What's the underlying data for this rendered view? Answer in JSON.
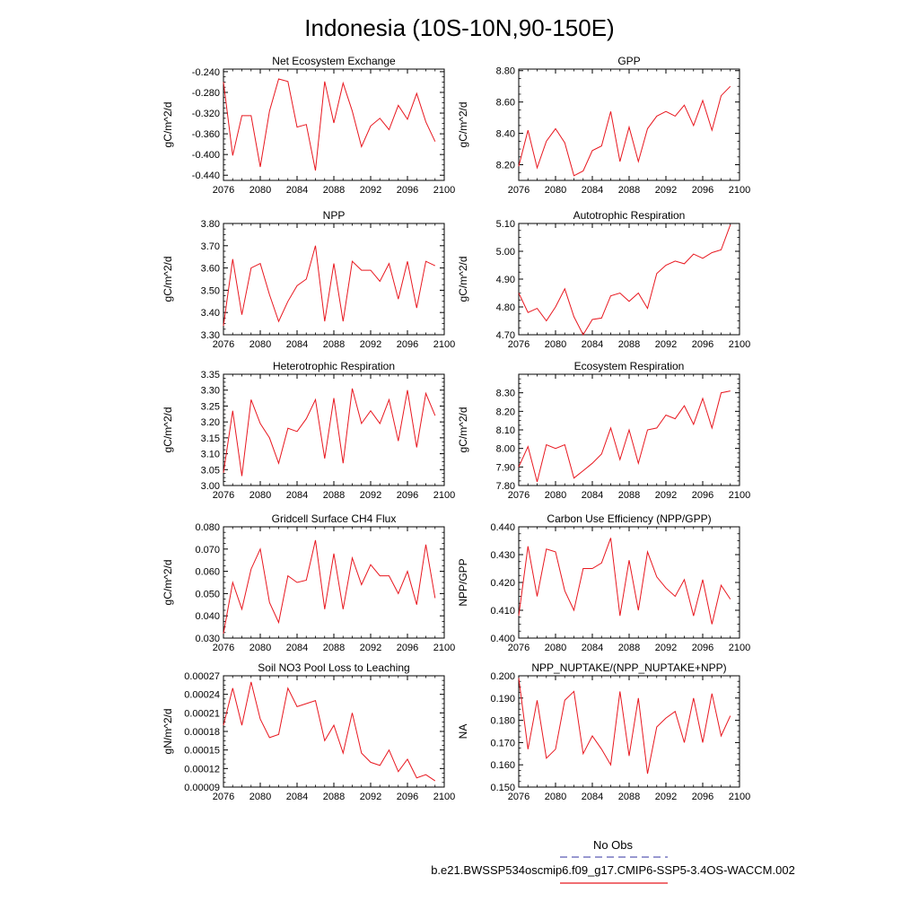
{
  "figure": {
    "title": "Indonesia (10S-10N,90-150E)",
    "legend": {
      "obs_label": "No Obs",
      "obs_color": "#5a5ab4",
      "model_label": "b.e21.BWSSP534oscmip6.f09_g17.CMIP6-SSP5-3.4OS-WACCM.002",
      "model_color": "#e8171f"
    }
  },
  "chart_data": [
    {
      "type": "line",
      "title": "Net Ecosystem Exchange",
      "ylabel": "gC/m^2/d",
      "xlim": [
        2076,
        2100
      ],
      "ylim": [
        -0.45,
        -0.235
      ],
      "xticks": [
        "2076",
        "2080",
        "2084",
        "2088",
        "2092",
        "2096",
        "2100"
      ],
      "yticks": [
        "-0.440",
        "-0.400",
        "-0.360",
        "-0.320",
        "-0.280",
        "-0.240"
      ],
      "color": "#e8171f",
      "x": [
        2076,
        2077,
        2078,
        2079,
        2080,
        2081,
        2082,
        2083,
        2084,
        2085,
        2086,
        2087,
        2088,
        2089,
        2090,
        2091,
        2092,
        2093,
        2094,
        2095,
        2096,
        2097,
        2098,
        2099
      ],
      "values": [
        -0.26,
        -0.402,
        -0.325,
        -0.325,
        -0.424,
        -0.316,
        -0.254,
        -0.259,
        -0.347,
        -0.342,
        -0.431,
        -0.259,
        -0.339,
        -0.262,
        -0.316,
        -0.385,
        -0.345,
        -0.33,
        -0.352,
        -0.305,
        -0.332,
        -0.282,
        -0.337,
        -0.375
      ]
    },
    {
      "type": "line",
      "title": "GPP",
      "ylabel": "gC/m^2/d",
      "xlim": [
        2076,
        2100
      ],
      "ylim": [
        8.1,
        8.81
      ],
      "xticks": [
        "2076",
        "2080",
        "2084",
        "2088",
        "2092",
        "2096",
        "2100"
      ],
      "yticks": [
        "8.20",
        "8.40",
        "8.60",
        "8.80"
      ],
      "color": "#e8171f",
      "x": [
        2076,
        2077,
        2078,
        2079,
        2080,
        2081,
        2082,
        2083,
        2084,
        2085,
        2086,
        2087,
        2088,
        2089,
        2090,
        2091,
        2092,
        2093,
        2094,
        2095,
        2096,
        2097,
        2098,
        2099
      ],
      "values": [
        8.19,
        8.42,
        8.18,
        8.35,
        8.43,
        8.34,
        8.13,
        8.16,
        8.29,
        8.32,
        8.54,
        8.22,
        8.44,
        8.22,
        8.43,
        8.51,
        8.54,
        8.51,
        8.58,
        8.45,
        8.61,
        8.42,
        8.64,
        8.7
      ]
    },
    {
      "type": "line",
      "title": "NPP",
      "ylabel": "gC/m^2/d",
      "xlim": [
        2076,
        2100
      ],
      "ylim": [
        3.3,
        3.8
      ],
      "xticks": [
        "2076",
        "2080",
        "2084",
        "2088",
        "2092",
        "2096",
        "2100"
      ],
      "yticks": [
        "3.30",
        "3.40",
        "3.50",
        "3.60",
        "3.70",
        "3.80"
      ],
      "color": "#e8171f",
      "x": [
        2076,
        2077,
        2078,
        2079,
        2080,
        2081,
        2082,
        2083,
        2084,
        2085,
        2086,
        2087,
        2088,
        2089,
        2090,
        2091,
        2092,
        2093,
        2094,
        2095,
        2096,
        2097,
        2098,
        2099
      ],
      "values": [
        3.34,
        3.64,
        3.39,
        3.6,
        3.62,
        3.48,
        3.36,
        3.45,
        3.52,
        3.55,
        3.7,
        3.36,
        3.62,
        3.36,
        3.63,
        3.59,
        3.59,
        3.54,
        3.62,
        3.46,
        3.63,
        3.42,
        3.63,
        3.61
      ]
    },
    {
      "type": "line",
      "title": "Autotrophic Respiration",
      "ylabel": "gC/m^2/d",
      "xlim": [
        2076,
        2100
      ],
      "ylim": [
        4.7,
        5.1
      ],
      "xticks": [
        "2076",
        "2080",
        "2084",
        "2088",
        "2092",
        "2096",
        "2100"
      ],
      "yticks": [
        "4.70",
        "4.80",
        "4.90",
        "5.00",
        "5.10"
      ],
      "color": "#e8171f",
      "x": [
        2076,
        2077,
        2078,
        2079,
        2080,
        2081,
        2082,
        2083,
        2084,
        2085,
        2086,
        2087,
        2088,
        2089,
        2090,
        2091,
        2092,
        2093,
        2094,
        2095,
        2096,
        2097,
        2098,
        2099
      ],
      "values": [
        4.85,
        4.78,
        4.795,
        4.75,
        4.8,
        4.865,
        4.765,
        4.7,
        4.755,
        4.76,
        4.84,
        4.85,
        4.82,
        4.85,
        4.795,
        4.92,
        4.95,
        4.965,
        4.955,
        4.99,
        4.975,
        4.995,
        5.005,
        5.095
      ]
    },
    {
      "type": "line",
      "title": "Heterotrophic Respiration",
      "ylabel": "gC/m^2/d",
      "xlim": [
        2076,
        2100
      ],
      "ylim": [
        3.0,
        3.35
      ],
      "xticks": [
        "2076",
        "2080",
        "2084",
        "2088",
        "2092",
        "2096",
        "2100"
      ],
      "yticks": [
        "3.00",
        "3.05",
        "3.10",
        "3.15",
        "3.20",
        "3.25",
        "3.30",
        "3.35"
      ],
      "color": "#e8171f",
      "x": [
        2076,
        2077,
        2078,
        2079,
        2080,
        2081,
        2082,
        2083,
        2084,
        2085,
        2086,
        2087,
        2088,
        2089,
        2090,
        2091,
        2092,
        2093,
        2094,
        2095,
        2096,
        2097,
        2098,
        2099
      ],
      "values": [
        3.04,
        3.235,
        3.03,
        3.27,
        3.195,
        3.15,
        3.07,
        3.18,
        3.17,
        3.21,
        3.27,
        3.085,
        3.275,
        3.07,
        3.305,
        3.195,
        3.235,
        3.195,
        3.27,
        3.14,
        3.3,
        3.12,
        3.29,
        3.22
      ]
    },
    {
      "type": "line",
      "title": "Ecosystem Respiration",
      "ylabel": "gC/m^2/d",
      "xlim": [
        2076,
        2100
      ],
      "ylim": [
        7.8,
        8.4
      ],
      "xticks": [
        "2076",
        "2080",
        "2084",
        "2088",
        "2092",
        "2096",
        "2100"
      ],
      "yticks": [
        "7.80",
        "7.90",
        "8.00",
        "8.10",
        "8.20",
        "8.30"
      ],
      "color": "#e8171f",
      "x": [
        2076,
        2077,
        2078,
        2079,
        2080,
        2081,
        2082,
        2083,
        2084,
        2085,
        2086,
        2087,
        2088,
        2089,
        2090,
        2091,
        2092,
        2093,
        2094,
        2095,
        2096,
        2097,
        2098,
        2099
      ],
      "values": [
        7.9,
        8.01,
        7.82,
        8.02,
        8.0,
        8.02,
        7.84,
        7.88,
        7.92,
        7.97,
        8.11,
        7.94,
        8.1,
        7.92,
        8.1,
        8.11,
        8.18,
        8.16,
        8.23,
        8.13,
        8.27,
        8.11,
        8.3,
        8.31
      ]
    },
    {
      "type": "line",
      "title": "Gridcell Surface CH4 Flux",
      "ylabel": "gC/m^2/d",
      "xlim": [
        2076,
        2100
      ],
      "ylim": [
        0.03,
        0.08
      ],
      "xticks": [
        "2076",
        "2080",
        "2084",
        "2088",
        "2092",
        "2096",
        "2100"
      ],
      "yticks": [
        "0.030",
        "0.040",
        "0.050",
        "0.060",
        "0.070",
        "0.080"
      ],
      "color": "#e8171f",
      "x": [
        2076,
        2077,
        2078,
        2079,
        2080,
        2081,
        2082,
        2083,
        2084,
        2085,
        2086,
        2087,
        2088,
        2089,
        2090,
        2091,
        2092,
        2093,
        2094,
        2095,
        2096,
        2097,
        2098,
        2099
      ],
      "values": [
        0.032,
        0.055,
        0.043,
        0.061,
        0.07,
        0.046,
        0.037,
        0.058,
        0.055,
        0.056,
        0.074,
        0.043,
        0.068,
        0.043,
        0.066,
        0.054,
        0.063,
        0.058,
        0.058,
        0.05,
        0.06,
        0.045,
        0.072,
        0.048
      ]
    },
    {
      "type": "line",
      "title": "Carbon Use Efficiency (NPP/GPP)",
      "ylabel": "NPP/GPP",
      "xlim": [
        2076,
        2100
      ],
      "ylim": [
        0.4,
        0.44
      ],
      "xticks": [
        "2076",
        "2080",
        "2084",
        "2088",
        "2092",
        "2096",
        "2100"
      ],
      "yticks": [
        "0.400",
        "0.410",
        "0.420",
        "0.430",
        "0.440"
      ],
      "color": "#e8171f",
      "x": [
        2076,
        2077,
        2078,
        2079,
        2080,
        2081,
        2082,
        2083,
        2084,
        2085,
        2086,
        2087,
        2088,
        2089,
        2090,
        2091,
        2092,
        2093,
        2094,
        2095,
        2096,
        2097,
        2098,
        2099
      ],
      "values": [
        0.408,
        0.433,
        0.415,
        0.432,
        0.431,
        0.417,
        0.41,
        0.425,
        0.425,
        0.427,
        0.436,
        0.408,
        0.428,
        0.41,
        0.431,
        0.422,
        0.418,
        0.415,
        0.421,
        0.408,
        0.421,
        0.405,
        0.419,
        0.414
      ]
    },
    {
      "type": "line",
      "title": "Soil NO3 Pool Loss to Leaching",
      "ylabel": "gN/m^2/d",
      "xlim": [
        2076,
        2100
      ],
      "ylim": [
        9e-05,
        0.00027
      ],
      "xticks": [
        "2076",
        "2080",
        "2084",
        "2088",
        "2092",
        "2096",
        "2100"
      ],
      "yticks": [
        "0.00009",
        "0.00012",
        "0.00015",
        "0.00018",
        "0.00021",
        "0.00024",
        "0.00027"
      ],
      "color": "#e8171f",
      "x": [
        2076,
        2077,
        2078,
        2079,
        2080,
        2081,
        2082,
        2083,
        2084,
        2085,
        2086,
        2087,
        2088,
        2089,
        2090,
        2091,
        2092,
        2093,
        2094,
        2095,
        2096,
        2097,
        2098,
        2099
      ],
      "values": [
        0.00019,
        0.00025,
        0.00019,
        0.00026,
        0.0002,
        0.00017,
        0.000175,
        0.00025,
        0.00022,
        0.000225,
        0.00023,
        0.000165,
        0.00019,
        0.000145,
        0.00021,
        0.000145,
        0.00013,
        0.000125,
        0.00015,
        0.000115,
        0.000135,
        0.000105,
        0.00011,
        0.0001
      ]
    },
    {
      "type": "line",
      "title": "NPP_NUPTAKE/(NPP_NUPTAKE+NPP)",
      "ylabel": "NA",
      "xlim": [
        2076,
        2100
      ],
      "ylim": [
        0.15,
        0.2
      ],
      "xticks": [
        "2076",
        "2080",
        "2084",
        "2088",
        "2092",
        "2096",
        "2100"
      ],
      "yticks": [
        "0.150",
        "0.160",
        "0.170",
        "0.180",
        "0.190",
        "0.200"
      ],
      "color": "#e8171f",
      "x": [
        2076,
        2077,
        2078,
        2079,
        2080,
        2081,
        2082,
        2083,
        2084,
        2085,
        2086,
        2087,
        2088,
        2089,
        2090,
        2091,
        2092,
        2093,
        2094,
        2095,
        2096,
        2097,
        2098,
        2099
      ],
      "values": [
        0.199,
        0.167,
        0.189,
        0.163,
        0.167,
        0.189,
        0.193,
        0.165,
        0.173,
        0.167,
        0.16,
        0.193,
        0.164,
        0.19,
        0.156,
        0.177,
        0.181,
        0.184,
        0.17,
        0.19,
        0.17,
        0.192,
        0.173,
        0.182
      ]
    }
  ]
}
